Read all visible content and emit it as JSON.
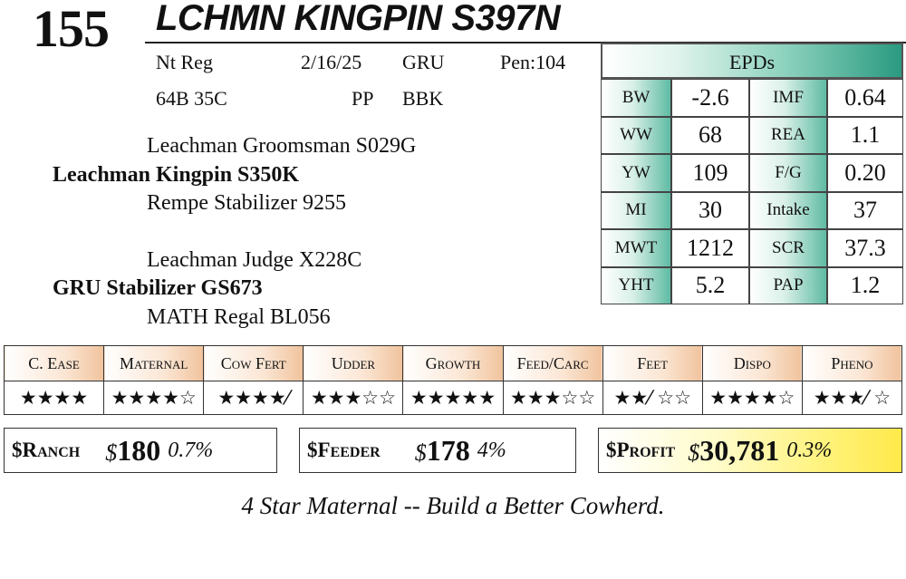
{
  "header": {
    "lot_number": "155",
    "animal_name": "LCHMN KINGPIN S397N"
  },
  "info": {
    "row1": [
      "Nt Reg",
      "2/16/25",
      "GRU",
      "Pen:104"
    ],
    "row2": [
      "64B 35C",
      "PP",
      "BBK"
    ]
  },
  "pedigree": {
    "sire_sire": "Leachman Groomsman S029G",
    "sire": "Leachman Kingpin S350K",
    "sire_dam": "Rempe Stabilizer 9255",
    "dam_sire": "Leachman Judge X228C",
    "dam": "GRU Stabilizer GS673",
    "dam_dam": "MATH Regal BL056"
  },
  "epds": {
    "title": "EPDs",
    "rows": [
      {
        "l1": "BW",
        "v1": "-2.6",
        "l2": "IMF",
        "v2": "0.64"
      },
      {
        "l1": "WW",
        "v1": "68",
        "l2": "REA",
        "v2": "1.1"
      },
      {
        "l1": "YW",
        "v1": "109",
        "l2": "F/G",
        "v2": "0.20"
      },
      {
        "l1": "MI",
        "v1": "30",
        "l2": "Intake",
        "v2": "37"
      },
      {
        "l1": "MWT",
        "v1": "1212",
        "l2": "SCR",
        "v2": "37.3"
      },
      {
        "l1": "YHT",
        "v1": "5.2",
        "l2": "PAP",
        "v2": "1.2"
      }
    ]
  },
  "traits": {
    "headers": [
      "C. Ease",
      "Maternal",
      "Cow Fert",
      "Udder",
      "Growth",
      "Feed/Carc",
      "Feet",
      "Dispo",
      "Pheno"
    ],
    "stars": [
      "★★★★",
      "★★★★☆",
      "★★★★⁄",
      "★★★☆☆",
      "★★★★★",
      "★★★☆☆",
      "★★⁄ ☆☆",
      "★★★★☆",
      "★★★⁄ ☆"
    ]
  },
  "indexes": {
    "ranch": {
      "label": "$Ranch",
      "prefix": "$",
      "value": "180",
      "pct": "0.7%"
    },
    "feeder": {
      "label": "$Feeder",
      "prefix": "$",
      "value": "178",
      "pct": "4%"
    },
    "profit": {
      "label": "$Profit",
      "prefix": "$",
      "value": "30,781",
      "pct": "0.3%"
    }
  },
  "tagline": "4 Star Maternal -- Build a Better Cowherd.",
  "colors": {
    "epd_accent": "#2a9a80",
    "trait_header": "#f0c39d",
    "profit_highlight": "#ffe94a"
  }
}
